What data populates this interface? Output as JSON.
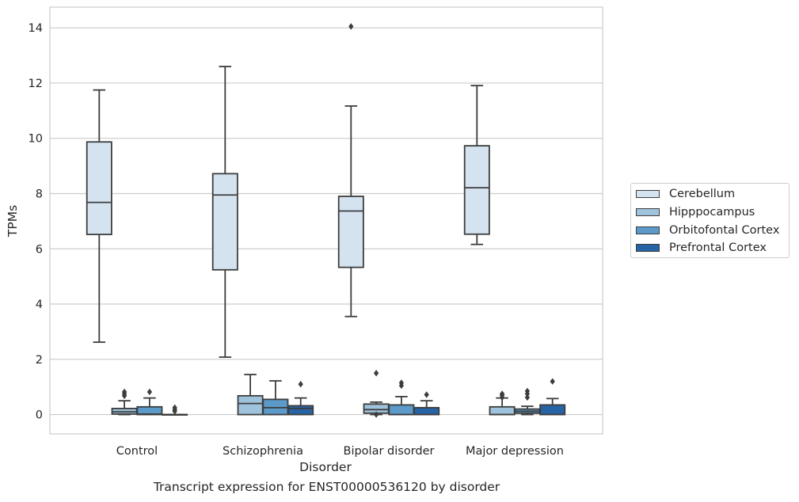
{
  "caption": "Transcript expression for ENST00000536120 by disorder",
  "chart_data": {
    "type": "boxplot",
    "xlabel": "Disorder",
    "ylabel": "TPMs",
    "categories": [
      "Control",
      "Schizophrenia",
      "Bipolar disorder",
      "Major depression"
    ],
    "yticks": [
      0,
      2,
      4,
      6,
      8,
      10,
      12,
      14
    ],
    "ylim": [
      -0.7,
      14.75
    ],
    "grid": "horizontal",
    "legend_position": "right",
    "series": [
      {
        "name": "Cerebellum",
        "color": "#d5e3f1",
        "boxes": [
          {
            "whislo": 2.62,
            "q1": 6.52,
            "med": 7.68,
            "q3": 9.87,
            "whishi": 11.75,
            "fliers": []
          },
          {
            "whislo": 2.08,
            "q1": 5.24,
            "med": 7.95,
            "q3": 8.72,
            "whishi": 12.6,
            "fliers": []
          },
          {
            "whislo": 3.55,
            "q1": 5.33,
            "med": 7.37,
            "q3": 7.9,
            "whishi": 11.17,
            "fliers": [
              14.05
            ]
          },
          {
            "whislo": 6.16,
            "q1": 6.53,
            "med": 8.21,
            "q3": 9.73,
            "whishi": 11.91,
            "fliers": []
          }
        ]
      },
      {
        "name": "Hipppocampus",
        "color": "#a0c3dd",
        "boxes": [
          {
            "whislo": 0.0,
            "q1": 0.02,
            "med": 0.1,
            "q3": 0.22,
            "whishi": 0.5,
            "fliers": [
              0.68,
              0.75,
              0.82
            ]
          },
          {
            "whislo": 0.0,
            "q1": 0.0,
            "med": 0.4,
            "q3": 0.68,
            "whishi": 1.45,
            "fliers": []
          },
          {
            "whislo": 0.0,
            "q1": 0.05,
            "med": 0.18,
            "q3": 0.38,
            "whishi": 0.45,
            "fliers": [
              0.0,
              1.5
            ]
          },
          {
            "whislo": 0.0,
            "q1": 0.0,
            "med": 0.0,
            "q3": 0.28,
            "whishi": 0.6,
            "fliers": [
              0.62,
              0.7,
              0.75
            ]
          }
        ]
      },
      {
        "name": "Orbitofontal Cortex",
        "color": "#5b9ac9",
        "boxes": [
          {
            "whislo": 0.0,
            "q1": 0.0,
            "med": 0.02,
            "q3": 0.28,
            "whishi": 0.6,
            "fliers": [
              0.82
            ]
          },
          {
            "whislo": 0.0,
            "q1": 0.0,
            "med": 0.25,
            "q3": 0.55,
            "whishi": 1.22,
            "fliers": []
          },
          {
            "whislo": 0.0,
            "q1": 0.0,
            "med": 0.0,
            "q3": 0.35,
            "whishi": 0.65,
            "fliers": [
              1.05,
              1.15
            ]
          },
          {
            "whislo": 0.0,
            "q1": 0.05,
            "med": 0.12,
            "q3": 0.2,
            "whishi": 0.3,
            "fliers": [
              0.62,
              0.75,
              0.85
            ]
          }
        ]
      },
      {
        "name": "Prefrontal Cortex",
        "color": "#2764a5",
        "boxes": [
          {
            "whislo": 0.0,
            "q1": 0.0,
            "med": 0.0,
            "q3": 0.0,
            "whishi": 0.0,
            "fliers": [
              0.12,
              0.18,
              0.25
            ]
          },
          {
            "whislo": 0.0,
            "q1": 0.0,
            "med": 0.22,
            "q3": 0.32,
            "whishi": 0.6,
            "fliers": [
              1.1
            ]
          },
          {
            "whislo": 0.0,
            "q1": 0.0,
            "med": 0.0,
            "q3": 0.25,
            "whishi": 0.5,
            "fliers": [
              0.72
            ]
          },
          {
            "whislo": 0.0,
            "q1": 0.0,
            "med": 0.0,
            "q3": 0.35,
            "whishi": 0.58,
            "fliers": [
              1.2
            ]
          }
        ]
      }
    ]
  }
}
